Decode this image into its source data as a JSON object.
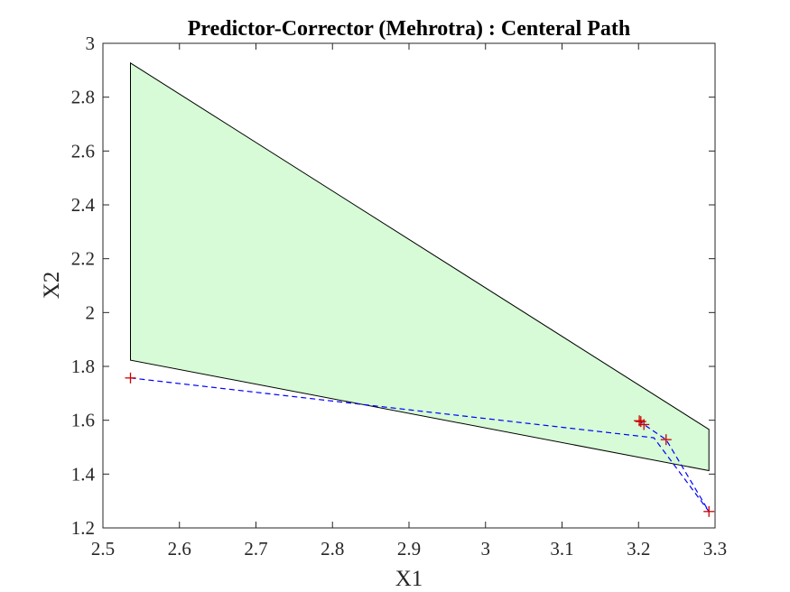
{
  "chart_data": {
    "type": "line",
    "title": "Predictor-Corrector (Mehrotra) : Centeral Path",
    "xlabel": "X1",
    "ylabel": "X2",
    "xlim": [
      2.5,
      3.3
    ],
    "ylim": [
      1.2,
      3.0
    ],
    "x_ticks": [
      "2.5",
      "2.6",
      "2.7",
      "2.8",
      "2.9",
      "3",
      "3.1",
      "3.2",
      "3.3"
    ],
    "y_ticks": [
      "1.2",
      "1.4",
      "1.6",
      "1.8",
      "2",
      "2.2",
      "2.4",
      "2.6",
      "2.8",
      "3"
    ],
    "grid": false,
    "legend": "none",
    "feasible_region": {
      "fill_color": "#d6fbd6",
      "edge_color": "#000000",
      "vertices": [
        [
          2.536,
          2.927
        ],
        [
          3.292,
          1.566
        ],
        [
          3.292,
          1.413
        ],
        [
          2.536,
          1.823
        ]
      ]
    },
    "central_path": {
      "line_color": "#0000ff",
      "line_style": "dashed",
      "marker": "+",
      "marker_color": "#cc0000",
      "x": [
        2.536,
        3.292,
        3.236,
        3.207,
        3.201,
        3.203
      ],
      "y": [
        1.757,
        1.261,
        1.528,
        1.584,
        1.598,
        1.595
      ],
      "path_x": [
        2.536,
        3.22,
        3.292,
        3.236,
        3.207,
        3.201,
        3.203
      ],
      "path_y": [
        1.757,
        1.535,
        1.261,
        1.528,
        1.584,
        1.598,
        1.595
      ]
    }
  }
}
